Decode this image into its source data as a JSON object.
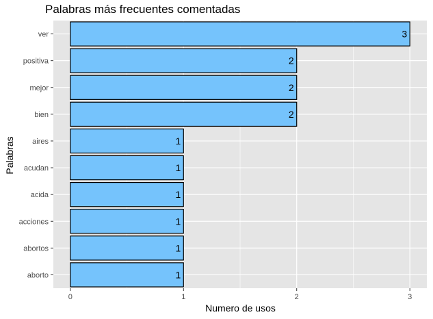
{
  "chart_data": {
    "type": "bar",
    "orientation": "horizontal",
    "title": "Palabras más frecuentes comentadas",
    "xlabel": "Numero de usos",
    "ylabel": "Palabras",
    "categories": [
      "ver",
      "positiva",
      "mejor",
      "bien",
      "aires",
      "acudan",
      "acida",
      "acciones",
      "abortos",
      "aborto"
    ],
    "values": [
      3,
      2,
      2,
      2,
      1,
      1,
      1,
      1,
      1,
      1
    ],
    "xlim": [
      -0.15,
      3.15
    ],
    "xticks": [
      0,
      1,
      2,
      3
    ],
    "grid": true,
    "legend": "none",
    "colors": {
      "bar_fill": "#75C3FC",
      "bar_stroke": "#000000",
      "panel_bg": "#E5E5E5",
      "grid": "#FFFFFF"
    }
  }
}
